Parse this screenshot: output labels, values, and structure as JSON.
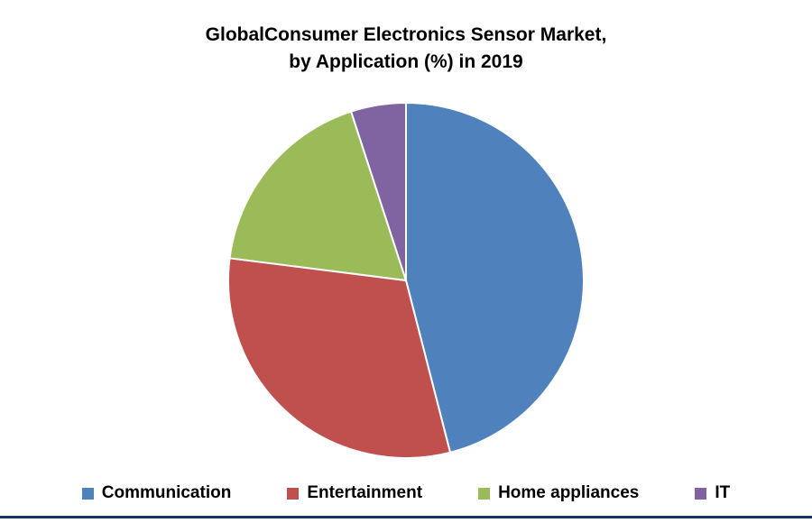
{
  "chart_data": {
    "type": "pie",
    "title": "GlobalConsumer Electronics Sensor Market,\nby Application (%) in 2019",
    "labels": [
      "Communication",
      "Entertainment",
      "Home appliances",
      "IT"
    ],
    "values": [
      46,
      31,
      18,
      5
    ],
    "unit": "%",
    "colors": [
      "#4F81BD",
      "#C0504D",
      "#9BBB59",
      "#8064A2"
    ],
    "start_angle_deg": 0,
    "direction": "clockwise",
    "slice_border_color": "#FFFFFF",
    "legend_position": "bottom",
    "background": "#FFFFFF",
    "accent_line_color": "#17375E"
  }
}
